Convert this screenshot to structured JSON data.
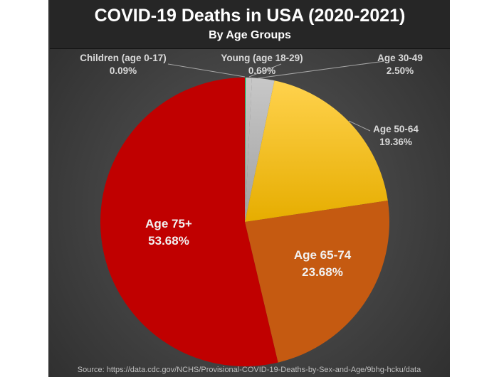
{
  "chart_data": {
    "type": "pie",
    "title": "COVID-19 Deaths in USA (2020-2021)",
    "subtitle": "By Age Groups",
    "source": "Source: https://data.cdc.gov/NCHS/Provisional-COVID-19-Deaths-by-Sex-and-Age/9bhg-hcku/data",
    "start_angle": "12 o'clock, clockwise",
    "slices": [
      {
        "label": "Children (age 0-17)",
        "value": 0.09,
        "value_label": "0.09%",
        "color": "#00b050"
      },
      {
        "label": "Young (age 18-29)",
        "value": 0.69,
        "value_label": "0.69%",
        "color": "#a5a5a5"
      },
      {
        "label": "Age 30-49",
        "value": 2.5,
        "value_label": "2.50%",
        "color": "#b7b7b7"
      },
      {
        "label": "Age 50-64",
        "value": 19.36,
        "value_label": "19.36%",
        "color": "#ffc000"
      },
      {
        "label": "Age 65-74",
        "value": 23.68,
        "value_label": "23.68%",
        "color": "#c55a11"
      },
      {
        "label": "Age 75+",
        "value": 53.68,
        "value_label": "53.68%",
        "color": "#c00000"
      }
    ]
  }
}
